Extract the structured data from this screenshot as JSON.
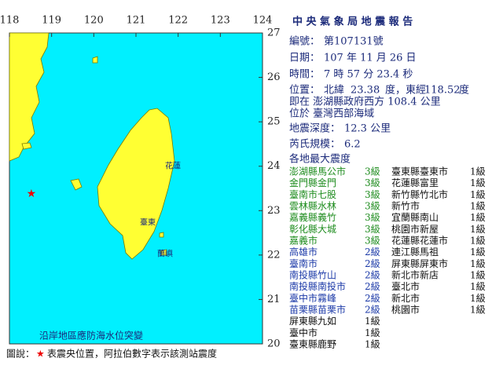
{
  "map": {
    "lon_ticks": [
      118,
      119,
      120,
      121,
      122,
      123,
      124
    ],
    "lat_ticks": [
      27,
      26,
      25,
      24,
      23,
      22,
      21,
      20
    ],
    "lonlim": [
      118,
      124
    ],
    "latlim": [
      20,
      27
    ],
    "notice": "沿岸地區應防海水位突變",
    "place_labels": [
      "花蓮",
      "臺東",
      "蘭嶼"
    ]
  },
  "report": {
    "title": "中 央 氣 象 局 地 震 報 告",
    "number_label": "編號：",
    "number": "第107131號",
    "date_label": "日期：",
    "date": "107 年 11 月 26 日",
    "time_label": "時間：",
    "time": "7 時 57 分 23.4 秒",
    "location_label": "位置：",
    "lat_prefix": "北緯",
    "lat": 23.38,
    "lat_suffix": "度，東經",
    "lon": 118.52,
    "lon_suffix": "度",
    "relative": "即在 澎湖縣政府西方 108.4 公里",
    "region": "位於 臺灣西部海域",
    "depth_label": "地震深度：",
    "depth": "12.3 公里",
    "magnitude_label": "芮氏規模：",
    "magnitude": 6.2,
    "intensity_heading": "各地最大震度"
  },
  "intensity": {
    "left": [
      {
        "station": "澎湖縣馬公市",
        "level": "3級",
        "color": "#1e8c1e"
      },
      {
        "station": "金門縣金門",
        "level": "3級",
        "color": "#1e8c1e"
      },
      {
        "station": "臺南市七股",
        "level": "3級",
        "color": "#1e8c1e"
      },
      {
        "station": "雲林縣水林",
        "level": "3級",
        "color": "#1e8c1e"
      },
      {
        "station": "嘉義縣義竹",
        "level": "3級",
        "color": "#1e8c1e"
      },
      {
        "station": "彰化縣大城",
        "level": "3級",
        "color": "#1e8c1e"
      },
      {
        "station": "嘉義市",
        "level": "3級",
        "color": "#1e8c1e"
      },
      {
        "station": "高雄市",
        "level": "2級",
        "color": "#1c3aa8"
      },
      {
        "station": "臺南市",
        "level": "2級",
        "color": "#1c3aa8"
      },
      {
        "station": "南投縣竹山",
        "level": "2級",
        "color": "#1c3aa8"
      },
      {
        "station": "南投縣南投市",
        "level": "2級",
        "color": "#1c3aa8"
      },
      {
        "station": "臺中市霧峰",
        "level": "2級",
        "color": "#1c3aa8"
      },
      {
        "station": "苗栗縣苗栗市",
        "level": "2級",
        "color": "#1c3aa8"
      },
      {
        "station": "屏東縣九如",
        "level": "1級",
        "color": "#111111"
      },
      {
        "station": "臺中市",
        "level": "1級",
        "color": "#111111"
      },
      {
        "station": "臺東縣鹿野",
        "level": "1級",
        "color": "#111111"
      }
    ],
    "right": [
      {
        "station": "臺東縣臺東市",
        "level": "1級",
        "color": "#111111"
      },
      {
        "station": "花蓮縣富里",
        "level": "1級",
        "color": "#111111"
      },
      {
        "station": "新竹縣竹北市",
        "level": "1級",
        "color": "#111111"
      },
      {
        "station": "新竹市",
        "level": "1級",
        "color": "#111111"
      },
      {
        "station": "宜蘭縣南山",
        "level": "1級",
        "color": "#111111"
      },
      {
        "station": "桃園市新屋",
        "level": "1級",
        "color": "#111111"
      },
      {
        "station": "花蓮縣花蓮市",
        "level": "1級",
        "color": "#111111"
      },
      {
        "station": "連江縣馬祖",
        "level": "1級",
        "color": "#111111"
      },
      {
        "station": "屏東縣屏東市",
        "level": "1級",
        "color": "#111111"
      },
      {
        "station": "新北市新店",
        "level": "1級",
        "color": "#111111"
      },
      {
        "station": "臺北市",
        "level": "1級",
        "color": "#111111"
      },
      {
        "station": "新北市",
        "level": "1級",
        "color": "#111111"
      },
      {
        "station": "桃園市",
        "level": "1級",
        "color": "#111111"
      }
    ]
  },
  "footer": {
    "prefix": "圖說：",
    "star": "★",
    "text": "表震央位置，阿拉伯數字表示該測站震度"
  }
}
